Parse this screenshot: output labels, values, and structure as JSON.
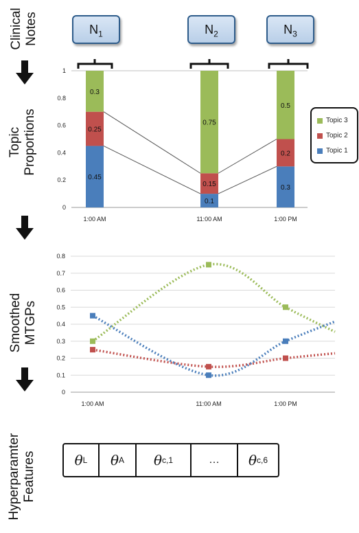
{
  "row_labels": {
    "clinical_notes": [
      "Clinical",
      "Notes"
    ],
    "topic_proportions": [
      "Topic",
      "Proportions"
    ],
    "smoothed": [
      "Smoothed",
      "MTGPs"
    ],
    "hyperparameter": [
      "Hyperparamter",
      "Features"
    ]
  },
  "notes": [
    {
      "base": "N",
      "sub": "1"
    },
    {
      "base": "N",
      "sub": "2"
    },
    {
      "base": "N",
      "sub": "3"
    }
  ],
  "features": [
    {
      "base": "θ",
      "sub": "L"
    },
    {
      "base": "θ",
      "sub": "A"
    },
    {
      "base": "θ",
      "sub": "c,1"
    },
    {
      "base": "…",
      "sub": ""
    },
    {
      "base": "θ",
      "sub": "c,6"
    }
  ],
  "colors": {
    "topic1": "#4a7ebb",
    "topic2": "#c0504d",
    "topic3": "#9bbb59",
    "note_border": "#2d5b8a"
  },
  "chart_data": [
    {
      "type": "bar",
      "stacked": true,
      "categories": [
        "1:00 AM",
        "11:00 AM",
        "1:00 PM"
      ],
      "series": [
        {
          "name": "Topic 1",
          "values": [
            0.45,
            0.1,
            0.3
          ]
        },
        {
          "name": "Topic 2",
          "values": [
            0.25,
            0.15,
            0.2
          ]
        },
        {
          "name": "Topic 3",
          "values": [
            0.3,
            0.75,
            0.5
          ]
        }
      ],
      "data_labels": [
        [
          "0.45",
          "0.1",
          "0.3"
        ],
        [
          "0.25",
          "0.15",
          "0.2"
        ],
        [
          "0.3",
          "0.75",
          "0.5"
        ]
      ],
      "yticks": [
        "0",
        "0.2",
        "0.4",
        "0.6",
        "0.8",
        "1"
      ],
      "ylim": [
        0,
        1
      ],
      "legend": "right",
      "legend_entries": [
        "Topic 3",
        "Topic 2",
        "Topic 1"
      ]
    },
    {
      "type": "line",
      "style": "dotted-smoothed",
      "categories": [
        "1:00 AM",
        "11:00 AM",
        "1:00 PM"
      ],
      "series": [
        {
          "values": [
            0.3,
            0.75,
            0.5
          ]
        },
        {
          "values": [
            0.25,
            0.15,
            0.2
          ]
        },
        {
          "values": [
            0.45,
            0.1,
            0.3
          ]
        }
      ],
      "yticks": [
        "0",
        "0.1",
        "0.2",
        "0.3",
        "0.4",
        "0.5",
        "0.6",
        "0.7",
        "0.8"
      ],
      "ylim": [
        0,
        0.8
      ],
      "grid": true
    }
  ]
}
